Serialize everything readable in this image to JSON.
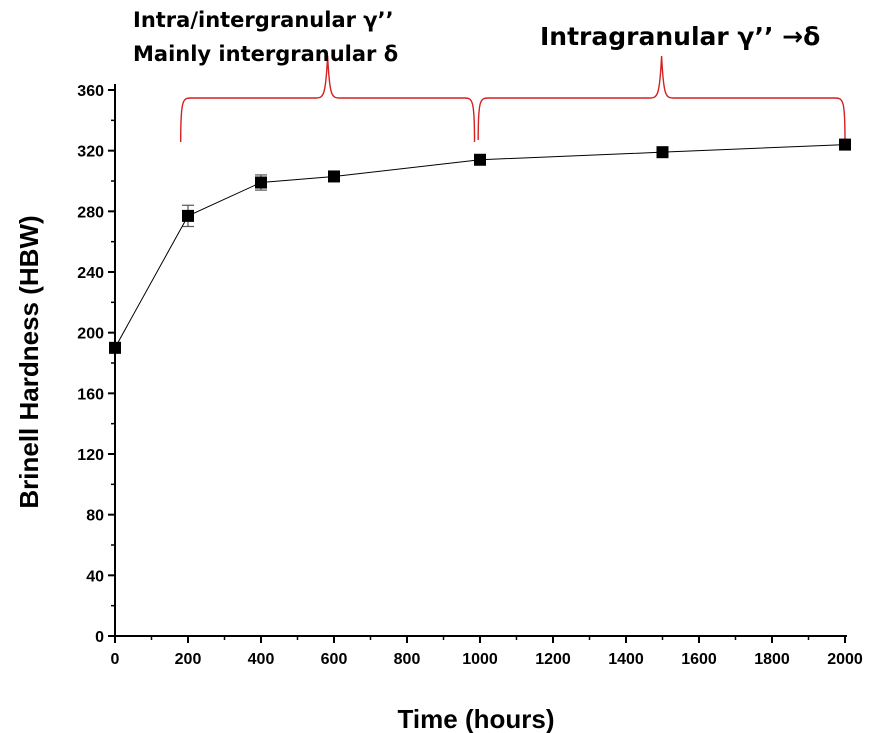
{
  "chart_data": {
    "type": "line",
    "title": "",
    "xlabel": "Time (hours)",
    "ylabel": "Brinell Hardness (HBW)",
    "xlim": [
      0,
      2000
    ],
    "ylim": [
      0,
      360
    ],
    "x_ticks": [
      0,
      200,
      400,
      600,
      800,
      1000,
      1200,
      1400,
      1600,
      1800,
      2000
    ],
    "y_ticks": [
      0,
      40,
      80,
      120,
      160,
      200,
      240,
      280,
      320,
      360
    ],
    "grid": false,
    "legend": "none",
    "series": [
      {
        "marker": "square",
        "color": "#000000",
        "x": [
          0,
          200,
          400,
          600,
          1000,
          1500,
          2000
        ],
        "y": [
          190,
          277,
          299,
          303,
          314,
          319,
          324
        ],
        "error": [
          0,
          7,
          5,
          3,
          2,
          2,
          2
        ]
      }
    ],
    "annotations": [
      {
        "text_lines": [
          "Intra/intergranular γ’’",
          "Mainly intergranular δ"
        ],
        "bracket_x": [
          180,
          985
        ],
        "bracket_color": "#d42020"
      },
      {
        "text_lines": [
          "Intragranular γ’’ →δ"
        ],
        "bracket_x": [
          995,
          2000
        ],
        "bracket_color": "#d42020"
      }
    ]
  }
}
